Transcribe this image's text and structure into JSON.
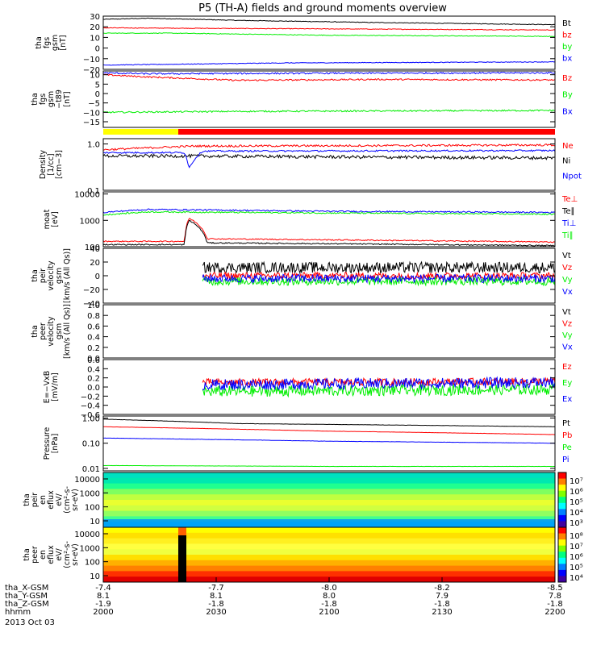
{
  "title": "P5 (TH-A) fields and ground moments overview",
  "date_label": "2013 Oct 03",
  "colors": {
    "black": "#000000",
    "red": "#ff0000",
    "green": "#00ee00",
    "blue": "#0000ff"
  },
  "time_axis": {
    "rows": [
      {
        "label": "tha_X-GSM",
        "values": [
          "-7.4",
          "-7.7",
          "-8.0",
          "-8.2",
          "-8.5"
        ]
      },
      {
        "label": "tha_Y-GSM",
        "values": [
          "8.1",
          "8.1",
          "8.0",
          "7.9",
          "7.8"
        ]
      },
      {
        "label": "tha_Z-GSM",
        "values": [
          "-1.9",
          "-1.8",
          "-1.8",
          "-1.8",
          "-1.8"
        ]
      },
      {
        "label": "hhmm",
        "values": [
          "2000",
          "2030",
          "2100",
          "2130",
          "2200"
        ]
      }
    ]
  },
  "chart_data": [
    {
      "type": "line",
      "ylabel": [
        "tha",
        "fgs",
        "gsm",
        "[nT]"
      ],
      "yticks": [
        "30",
        "20",
        "10",
        "0",
        "−10",
        "−20"
      ],
      "ytick_values": [
        30,
        20,
        10,
        0,
        -10,
        -20
      ],
      "ylim": [
        -20,
        30
      ],
      "series": [
        {
          "name": "Bt",
          "color": "#000000",
          "start": 0.0,
          "points": [
            [
              0,
              27
            ],
            [
              0.1,
              28
            ],
            [
              0.3,
              26
            ],
            [
              0.6,
              24
            ],
            [
              1,
              22
            ]
          ],
          "noise": 0.3
        },
        {
          "name": "bz",
          "color": "#ff0000",
          "start": 0.0,
          "points": [
            [
              0,
              19
            ],
            [
              0.5,
              18
            ],
            [
              1,
              17
            ]
          ],
          "noise": 0.3
        },
        {
          "name": "by",
          "color": "#00ee00",
          "start": 0.0,
          "points": [
            [
              0,
              14
            ],
            [
              0.15,
              14
            ],
            [
              0.5,
              12
            ],
            [
              1,
              11
            ]
          ],
          "noise": 0.3
        },
        {
          "name": "bx",
          "color": "#0000ff",
          "start": 0.0,
          "points": [
            [
              0,
              -16
            ],
            [
              0.4,
              -14
            ],
            [
              1,
              -13
            ]
          ],
          "noise": 0.3
        }
      ]
    },
    {
      "type": "line",
      "ylabel": [
        "tha",
        "fgs",
        "gsm",
        "−t89"
      ],
      "ylabel2": "[nT]",
      "yticks": [
        "10",
        "5",
        "0",
        "−5",
        "−10",
        "−15"
      ],
      "ytick_values": [
        10,
        5,
        0,
        -5,
        -10,
        -15
      ],
      "ylim": [
        -18,
        12
      ],
      "series": [
        {
          "name": "Bz",
          "color": "#ff0000",
          "start": 0.0,
          "points": [
            [
              0,
              10
            ],
            [
              0.08,
              9
            ],
            [
              0.3,
              7
            ],
            [
              0.6,
              7.5
            ],
            [
              1,
              7.2
            ]
          ],
          "noise": 0.4
        },
        {
          "name": "By",
          "color": "#00ee00",
          "start": 0.0,
          "points": [
            [
              0,
              -10
            ],
            [
              0.3,
              -9.5
            ],
            [
              1,
              -9
            ]
          ],
          "noise": 0.4
        },
        {
          "name": "Bx",
          "color": "#0000ff",
          "start": 0.0,
          "points": [
            [
              0,
              11
            ],
            [
              0.1,
              10.5
            ],
            [
              0.5,
              10.8
            ],
            [
              1,
              11
            ]
          ],
          "noise": 0.4
        }
      ]
    },
    {
      "type": "line",
      "ylabel": [
        "Density",
        "[1/cc]",
        "[cm−3]"
      ],
      "yticks": [
        "1.0",
        "0.1"
      ],
      "ytick_values": [
        1.0,
        0.1
      ],
      "ylim": [
        0.1,
        1.3
      ],
      "log": true,
      "series": [
        {
          "name": "Ne",
          "color": "#ff0000",
          "start": 0.0,
          "points": [
            [
              0,
              0.75
            ],
            [
              0.2,
              0.9
            ],
            [
              0.6,
              0.92
            ],
            [
              1,
              0.95
            ]
          ],
          "noise": 0.05
        },
        {
          "name": "Ni",
          "color": "#000000",
          "start": 0.0,
          "points": [
            [
              0,
              0.55
            ],
            [
              0.2,
              0.55
            ],
            [
              0.6,
              0.52
            ],
            [
              1,
              0.5
            ]
          ],
          "noise": 0.08
        },
        {
          "name": "Npot",
          "color": "#0000ff",
          "start": 0.0,
          "points": [
            [
              0,
              0.65
            ],
            [
              0.18,
              0.65
            ],
            [
              0.19,
              0.3
            ],
            [
              0.22,
              0.7
            ],
            [
              1,
              0.72
            ]
          ],
          "noise": 0.04
        }
      ]
    },
    {
      "type": "line",
      "ylabel": [
        "moat",
        "[eV]"
      ],
      "yticks": [
        "10000",
        "1000",
        "100"
      ],
      "ytick_values": [
        10000,
        1000,
        100
      ],
      "ylim": [
        100,
        12000
      ],
      "log": true,
      "series": [
        {
          "name": "Te⊥",
          "color": "#ff0000",
          "start": 0.0,
          "points": [
            [
              0,
              160
            ],
            [
              0.18,
              160
            ],
            [
              0.19,
              1200
            ],
            [
              0.23,
              200
            ],
            [
              1,
              150
            ]
          ],
          "noise": 0.05
        },
        {
          "name": "Te∥",
          "color": "#000000",
          "start": 0.0,
          "points": [
            [
              0,
              120
            ],
            [
              0.18,
              120
            ],
            [
              0.19,
              1000
            ],
            [
              0.23,
              140
            ],
            [
              1,
              110
            ]
          ],
          "noise": 0.05
        },
        {
          "name": "Ti⊥",
          "color": "#0000ff",
          "start": 0.0,
          "points": [
            [
              0,
              2000
            ],
            [
              0.1,
              2600
            ],
            [
              0.5,
              2200
            ],
            [
              1,
              2000
            ]
          ],
          "noise": 0.06
        },
        {
          "name": "Ti∥",
          "color": "#00ee00",
          "start": 0.0,
          "points": [
            [
              0,
              1600
            ],
            [
              0.1,
              2100
            ],
            [
              0.5,
              1900
            ],
            [
              1,
              1700
            ]
          ],
          "noise": 0.06
        }
      ]
    },
    {
      "type": "line",
      "ylabel": [
        "tha",
        "peir",
        "velocity",
        "gsm",
        "[km/s (All Qs)]"
      ],
      "yticks": [
        "40",
        "20",
        "0",
        "−20",
        "−40"
      ],
      "ytick_values": [
        40,
        20,
        0,
        -20,
        -40
      ],
      "ylim": [
        -40,
        40
      ],
      "series": [
        {
          "name": "Vt",
          "color": "#000000",
          "start": 0.22,
          "points": [
            [
              0.22,
              12
            ],
            [
              1,
              12
            ]
          ],
          "noise": 8
        },
        {
          "name": "Vz",
          "color": "#ff0000",
          "start": 0.22,
          "points": [
            [
              0.22,
              0
            ],
            [
              1,
              0
            ]
          ],
          "noise": 5
        },
        {
          "name": "Vy",
          "color": "#00ee00",
          "start": 0.22,
          "points": [
            [
              0.22,
              -8
            ],
            [
              1,
              -8
            ]
          ],
          "noise": 6
        },
        {
          "name": "Vx",
          "color": "#0000ff",
          "start": 0.22,
          "points": [
            [
              0.22,
              -4
            ],
            [
              1,
              -4
            ]
          ],
          "noise": 6
        }
      ]
    },
    {
      "type": "line",
      "ylabel": [
        "tha",
        "peer",
        "velocity",
        "gsm",
        "[km/s (All Qs)]"
      ],
      "yticks": [
        "1.0",
        "0.8",
        "0.6",
        "0.4",
        "0.2",
        "0.0"
      ],
      "ytick_values": [
        1.0,
        0.8,
        0.6,
        0.4,
        0.2,
        0.0
      ],
      "ylim": [
        0,
        1
      ],
      "series": [
        {
          "name": "Vt",
          "color": "#000000",
          "points": []
        },
        {
          "name": "Vz",
          "color": "#ff0000",
          "points": []
        },
        {
          "name": "Vy",
          "color": "#00ee00",
          "points": []
        },
        {
          "name": "Vx",
          "color": "#0000ff",
          "points": []
        }
      ]
    },
    {
      "type": "line",
      "ylabel": [
        "E=−VxB",
        "[mV/m]"
      ],
      "yticks": [
        "0.6",
        "0.4",
        "0.2",
        "0.0",
        "−0.2",
        "−0.4",
        "−0.6"
      ],
      "ytick_values": [
        0.6,
        0.4,
        0.2,
        0.0,
        -0.2,
        -0.4,
        -0.6
      ],
      "ylim": [
        -0.6,
        0.6
      ],
      "series": [
        {
          "name": "Ez",
          "color": "#ff0000",
          "start": 0.22,
          "points": [
            [
              0.22,
              0.1
            ],
            [
              1,
              0.12
            ]
          ],
          "noise": 0.08
        },
        {
          "name": "Ey",
          "color": "#00ee00",
          "start": 0.22,
          "points": [
            [
              0.22,
              -0.1
            ],
            [
              1,
              -0.05
            ]
          ],
          "noise": 0.12
        },
        {
          "name": "Ex",
          "color": "#0000ff",
          "start": 0.22,
          "points": [
            [
              0.22,
              0.05
            ],
            [
              1,
              0.1
            ]
          ],
          "noise": 0.12
        }
      ]
    },
    {
      "type": "line",
      "ylabel": [
        "Pressure",
        "[nPa]"
      ],
      "yticks": [
        "1.00",
        "0.10",
        "0.01"
      ],
      "ytick_values": [
        1.0,
        0.1,
        0.01
      ],
      "ylim": [
        0.008,
        1.2
      ],
      "log": true,
      "series": [
        {
          "name": "Pt",
          "color": "#000000",
          "start": 0.0,
          "points": [
            [
              0,
              0.9
            ],
            [
              0.3,
              0.6
            ],
            [
              1,
              0.45
            ]
          ],
          "noise": 0.01
        },
        {
          "name": "Pb",
          "color": "#ff0000",
          "start": 0.0,
          "points": [
            [
              0,
              0.45
            ],
            [
              0.5,
              0.3
            ],
            [
              1,
              0.22
            ]
          ],
          "noise": 0.01
        },
        {
          "name": "Pe",
          "color": "#00ee00",
          "start": 0.0,
          "points": [
            [
              0,
              0.013
            ],
            [
              0.5,
              0.012
            ],
            [
              1,
              0.012
            ]
          ],
          "noise": 0.01
        },
        {
          "name": "Pi",
          "color": "#0000ff",
          "start": 0.0,
          "points": [
            [
              0,
              0.16
            ],
            [
              0.5,
              0.12
            ],
            [
              1,
              0.1
            ]
          ],
          "noise": 0.01
        }
      ]
    },
    {
      "type": "heatmap",
      "ylabel": [
        "tha",
        "peir",
        "en",
        "eflux",
        "eV/",
        "(cm²-s-",
        "sr-eV)"
      ],
      "yticks": [
        "10000",
        "1000",
        "100",
        "10"
      ],
      "colorbar_ticks": [
        "10⁷",
        "10⁶",
        "10⁵",
        "10⁴",
        "10³"
      ],
      "colorbar_values": [
        7,
        6,
        5,
        4,
        3
      ]
    },
    {
      "type": "heatmap",
      "ylabel": [
        "tha",
        "peer",
        "en",
        "eflux",
        "eV/",
        "(cm²-s-",
        "sr-eV)"
      ],
      "yticks": [
        "10000",
        "1000",
        "100",
        "10"
      ],
      "colorbar_ticks": [
        "10⁸",
        "10⁷",
        "10⁶",
        "10⁵",
        "10⁴"
      ],
      "colorbar_values": [
        8,
        7,
        6,
        5,
        4
      ]
    }
  ]
}
